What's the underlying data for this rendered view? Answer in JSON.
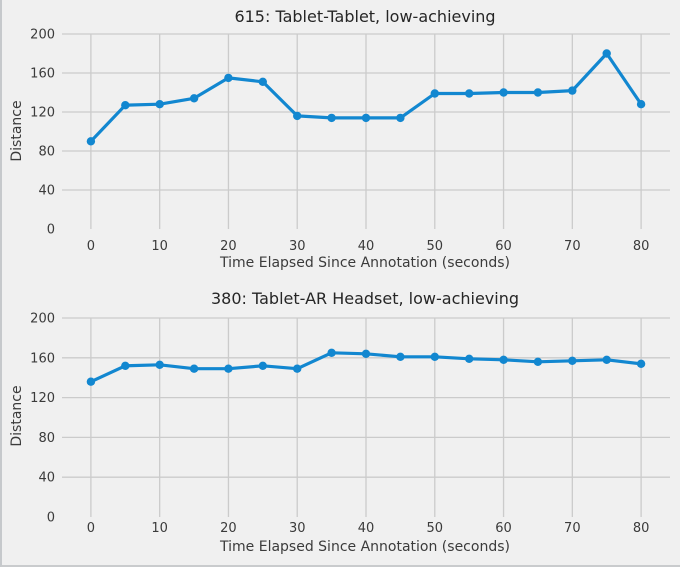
{
  "figure": {
    "background_color": "#f0f0f0",
    "grid_color": "#cbcbcb",
    "series_color": "#1287d0",
    "title_color": "#262626",
    "tick_color": "#3b3b3b"
  },
  "chart_data": [
    {
      "type": "line",
      "title": "615: Tablet-Tablet, low-achieving",
      "xlabel": "Time Elapsed Since Annotation (seconds)",
      "ylabel": "Distance",
      "x": [
        0,
        5,
        10,
        15,
        20,
        25,
        30,
        35,
        40,
        45,
        50,
        55,
        60,
        65,
        70,
        75,
        80
      ],
      "y": [
        90,
        127,
        128,
        134,
        155,
        151,
        116,
        114,
        114,
        114,
        139,
        139,
        140,
        140,
        142,
        180,
        128
      ],
      "xticks": [
        0,
        10,
        20,
        30,
        40,
        50,
        60,
        70,
        80
      ],
      "yticks": [
        0,
        40,
        80,
        120,
        160,
        200
      ],
      "xlim": [
        -4.2,
        84.2
      ],
      "ylim": [
        0,
        200
      ],
      "grid": true,
      "legend": "none",
      "marker": "circle"
    },
    {
      "type": "line",
      "title": "380: Tablet-AR Headset, low-achieving",
      "xlabel": "Time Elapsed Since Annotation (seconds)",
      "ylabel": "Distance",
      "x": [
        0,
        5,
        10,
        15,
        20,
        25,
        30,
        35,
        40,
        45,
        50,
        55,
        60,
        65,
        70,
        75,
        80
      ],
      "y": [
        136,
        152,
        153,
        149,
        149,
        152,
        149,
        165,
        164,
        161,
        161,
        159,
        158,
        156,
        157,
        158,
        154
      ],
      "xticks": [
        0,
        10,
        20,
        30,
        40,
        50,
        60,
        70,
        80
      ],
      "yticks": [
        0,
        40,
        80,
        120,
        160,
        200
      ],
      "xlim": [
        -4.2,
        84.2
      ],
      "ylim": [
        0,
        200
      ],
      "grid": true,
      "legend": "none",
      "marker": "circle"
    }
  ]
}
